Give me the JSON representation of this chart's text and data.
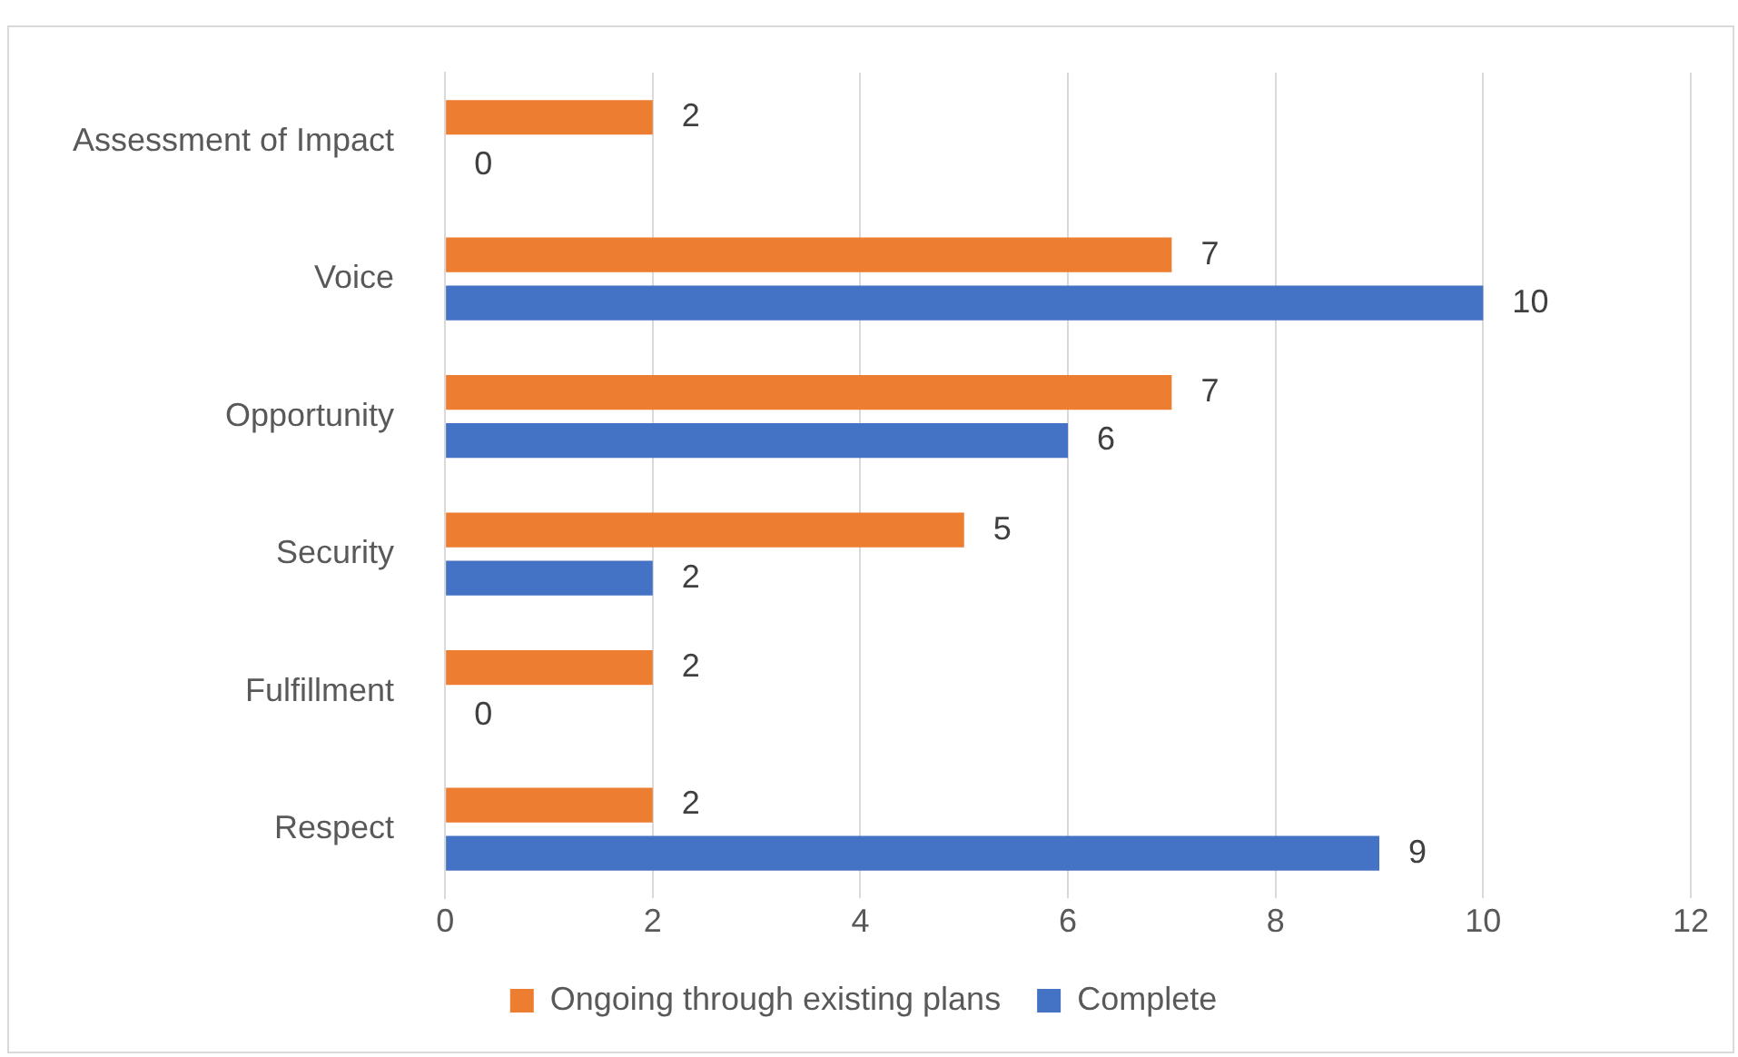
{
  "chart_data": {
    "type": "bar",
    "orientation": "horizontal",
    "categories": [
      "Assessment of Impact",
      "Voice",
      "Opportunity",
      "Security",
      "Fulfillment",
      "Respect"
    ],
    "series": [
      {
        "name": "Ongoing through existing plans",
        "color": "#ed7d31",
        "values": [
          2,
          7,
          7,
          5,
          2,
          2
        ]
      },
      {
        "name": "Complete",
        "color": "#4472c4",
        "values": [
          0,
          10,
          6,
          2,
          0,
          9
        ]
      }
    ],
    "xlim": [
      0,
      12
    ],
    "xticks": [
      0,
      2,
      4,
      6,
      8,
      10,
      12
    ],
    "grid": "x",
    "legend": "bottom",
    "data_labels": true
  }
}
